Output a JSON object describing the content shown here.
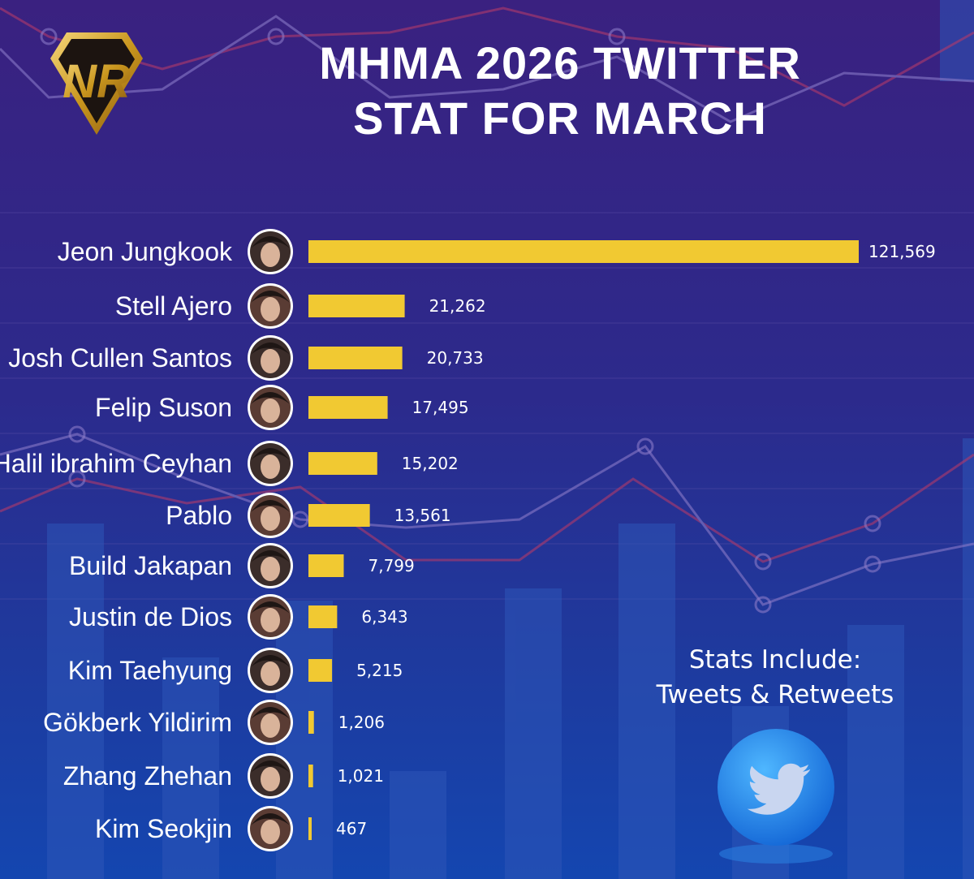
{
  "header": {
    "logo_text": "NR",
    "title_line1": "MHMA 2026 TWITTER",
    "title_line2": "STAT FOR MARCH"
  },
  "note": {
    "line1": "Stats Include:",
    "line2": "Tweets & Retweets",
    "icon": "twitter-bird-icon"
  },
  "colors": {
    "bar": "#f1c932",
    "text": "#ffffff",
    "background_top": "#3a2180",
    "background_bottom": "#1446b0"
  },
  "chart_data": {
    "type": "bar",
    "orientation": "horizontal",
    "title": "MHMA 2026 TWITTER STAT FOR MARCH",
    "categories": [
      "Jeon Jungkook",
      "Stell Ajero",
      "Josh Cullen Santos",
      "Felip Suson",
      "Halil ibrahim Ceyhan",
      "Pablo",
      "Build Jakapan",
      "Justin de Dios",
      "Kim Taehyung",
      "Gökberk Yildirim",
      "Zhang Zhehan",
      "Kim Seokjin"
    ],
    "values": [
      121569,
      21262,
      20733,
      17495,
      15202,
      13561,
      7799,
      6343,
      5215,
      1206,
      1021,
      467
    ],
    "value_labels": [
      "121,569",
      "21,262",
      "20,733",
      "17,495",
      "15,202",
      "13,561",
      "7,799",
      "6,343",
      "5,215",
      "1,206",
      "1,021",
      "467"
    ],
    "xlim": [
      0,
      121569
    ],
    "grid": false,
    "legend": "none"
  }
}
